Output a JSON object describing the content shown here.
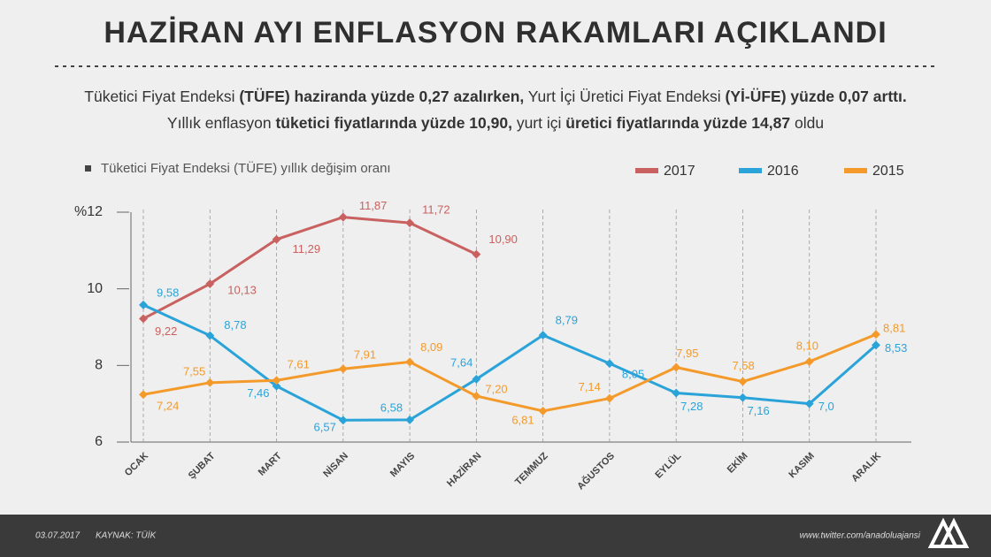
{
  "title": "HAZİRAN AYI ENFLASYON RAKAMLARI AÇIKLANDI",
  "subtitle_parts": [
    {
      "text": "Tüketici Fiyat Endeksi ",
      "bold": false
    },
    {
      "text": "(TÜFE) haziranda yüzde 0,27 azalırken,",
      "bold": true
    },
    {
      "text": " Yurt İçi Üretici Fiyat Endeksi ",
      "bold": false
    },
    {
      "text": "(Yİ-ÜFE) yüzde 0,07 arttı.",
      "bold": true
    },
    {
      "text": " Yıllık enflasyon ",
      "bold": false
    },
    {
      "text": "tüketici fiyatlarında yüzde 10,90,",
      "bold": true
    },
    {
      "text": " yurt içi ",
      "bold": false
    },
    {
      "text": "üretici fiyatlarında yüzde 14,87",
      "bold": true
    },
    {
      "text": " oldu",
      "bold": false
    }
  ],
  "chart_data": {
    "type": "line",
    "caption": "Tüketici Fiyat Endeksi (TÜFE) yıllık değişim oranı",
    "categories": [
      "OCAK",
      "ŞUBAT",
      "MART",
      "NİSAN",
      "MAYIS",
      "HAZİRAN",
      "TEMMUZ",
      "AĞUSTOS",
      "EYLÜL",
      "EKİM",
      "KASIM",
      "ARALIK"
    ],
    "series": [
      {
        "name": "2017",
        "color": "#c8615f",
        "values": [
          9.22,
          10.13,
          11.29,
          11.87,
          11.72,
          10.9,
          null,
          null,
          null,
          null,
          null,
          null
        ],
        "value_labels": [
          "9,22",
          "10,13",
          "11,29",
          "11,87",
          "11,72",
          "10,90",
          null,
          null,
          null,
          null,
          null,
          null
        ]
      },
      {
        "name": "2016",
        "color": "#2aa3d9",
        "values": [
          9.58,
          8.78,
          7.46,
          6.57,
          6.58,
          7.64,
          8.79,
          8.05,
          7.28,
          7.16,
          7.0,
          8.53
        ],
        "value_labels": [
          "9,58",
          "8,78",
          "7,46",
          "6,57",
          "6,58",
          "7,64",
          "8,79",
          "8,05",
          "7,28",
          "7,16",
          "7,0",
          "8,53"
        ]
      },
      {
        "name": "2015",
        "color": "#f39a2b",
        "values": [
          7.24,
          7.55,
          7.61,
          7.91,
          8.09,
          7.2,
          6.81,
          7.14,
          7.95,
          7.58,
          8.1,
          8.81
        ],
        "value_labels": [
          "7,24",
          "7,55",
          "7,61",
          "7,91",
          "8,09",
          "7,20",
          "6,81",
          "7,14",
          "7,95",
          "7,58",
          "8,10",
          "8,81"
        ]
      }
    ],
    "ylim": [
      6,
      12
    ],
    "yticks": [
      6,
      8,
      10,
      {
        "value": 12,
        "label": "%12"
      }
    ],
    "legend": "top-right"
  },
  "footer": {
    "date": "03.07.2017",
    "source": "KAYNAK: TÜİK",
    "url": "www.twitter.com/anadoluajansi"
  }
}
